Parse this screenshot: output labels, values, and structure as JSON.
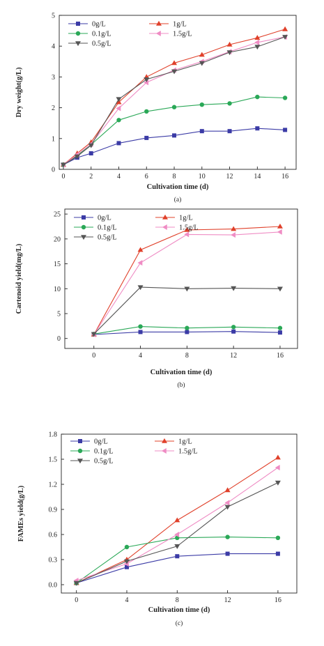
{
  "colors": {
    "0g/L": "#3b3ba6",
    "0.1g/L": "#2aa857",
    "0.5g/L": "#555555",
    "1g/L": "#e0402a",
    "1.5g/L": "#ef8cc4"
  },
  "chart_data": [
    {
      "type": "line",
      "panel_label": "(a)",
      "xlabel": "Cultivation time (d)",
      "ylabel": "Dry weight(g/L)",
      "xlim": [
        -0.3,
        16.8
      ],
      "ylim": [
        0,
        5
      ],
      "xticks": [
        0,
        2,
        4,
        6,
        8,
        10,
        12,
        14,
        16
      ],
      "yticks": [
        0,
        1,
        2,
        3,
        4,
        5
      ],
      "legend_position": "top-left",
      "series": [
        {
          "name": "0g/L",
          "marker": "square",
          "x": [
            0,
            1,
            2,
            4,
            6,
            8,
            10,
            12,
            14,
            16
          ],
          "y": [
            0.15,
            0.38,
            0.52,
            0.85,
            1.02,
            1.1,
            1.24,
            1.24,
            1.33,
            1.28
          ]
        },
        {
          "name": "1g/L",
          "marker": "triangle-up",
          "x": [
            0,
            1,
            2,
            4,
            6,
            8,
            10,
            12,
            14,
            16
          ],
          "y": [
            0.15,
            0.52,
            0.88,
            2.18,
            3.0,
            3.45,
            3.72,
            4.05,
            4.27,
            4.55
          ]
        },
        {
          "name": "0.1g/L",
          "marker": "circle",
          "x": [
            0,
            1,
            2,
            4,
            6,
            8,
            10,
            12,
            14,
            16
          ],
          "y": [
            0.15,
            0.45,
            0.8,
            1.6,
            1.88,
            2.02,
            2.1,
            2.14,
            2.35,
            2.32
          ]
        },
        {
          "name": "1.5g/L",
          "marker": "triangle-left",
          "x": [
            0,
            1,
            2,
            4,
            6,
            8,
            10,
            12,
            14,
            16
          ],
          "y": [
            0.15,
            0.48,
            0.82,
            1.98,
            2.82,
            3.22,
            3.5,
            3.82,
            4.12,
            4.3
          ]
        },
        {
          "name": "0.5g/L",
          "marker": "triangle-down",
          "x": [
            0,
            1,
            2,
            4,
            6,
            8,
            10,
            12,
            14,
            16
          ],
          "y": [
            0.15,
            0.42,
            0.78,
            2.28,
            2.92,
            3.18,
            3.45,
            3.8,
            3.98,
            4.3
          ]
        }
      ]
    },
    {
      "type": "line",
      "panel_label": "(b)",
      "xlabel": "Cultivation time (d)",
      "ylabel": "Cartenoid yield(mg/L)",
      "xlim": [
        -2.5,
        17.5
      ],
      "ylim": [
        -2,
        26
      ],
      "xticks": [
        0,
        4,
        8,
        12,
        16
      ],
      "yticks": [
        0,
        5,
        10,
        15,
        20,
        25
      ],
      "legend_position": "top-left",
      "series": [
        {
          "name": "0g/L",
          "marker": "square",
          "x": [
            0,
            4,
            8,
            12,
            16
          ],
          "y": [
            0.8,
            1.3,
            1.3,
            1.4,
            1.2
          ]
        },
        {
          "name": "1g/L",
          "marker": "triangle-up",
          "x": [
            0,
            4,
            8,
            12,
            16
          ],
          "y": [
            0.8,
            17.8,
            21.8,
            22.0,
            22.5
          ]
        },
        {
          "name": "0.1g/L",
          "marker": "circle",
          "x": [
            0,
            4,
            8,
            12,
            16
          ],
          "y": [
            0.9,
            2.4,
            2.1,
            2.3,
            2.1
          ]
        },
        {
          "name": "1.5g/L",
          "marker": "triangle-left",
          "x": [
            0,
            4,
            8,
            12,
            16
          ],
          "y": [
            0.8,
            15.2,
            20.9,
            20.8,
            21.4
          ]
        },
        {
          "name": "0.5g/L",
          "marker": "triangle-down",
          "x": [
            0,
            4,
            8,
            12,
            16
          ],
          "y": [
            0.9,
            10.3,
            10.0,
            10.1,
            10.0
          ]
        }
      ]
    },
    {
      "type": "line",
      "panel_label": "(c)",
      "xlabel": "Cultivation time (d)",
      "ylabel": "FAMEs yield(g/L)",
      "xlim": [
        -1.2,
        17.5
      ],
      "ylim": [
        -0.1,
        1.8
      ],
      "xticks": [
        0,
        4,
        8,
        12,
        16
      ],
      "yticks": [
        0.0,
        0.3,
        0.6,
        0.9,
        1.2,
        1.5,
        1.8
      ],
      "ytick_labels": [
        "0.0",
        "0.3",
        "0.6",
        "0.9",
        "1.2",
        "1.5",
        "1.8"
      ],
      "legend_position": "top-left",
      "series": [
        {
          "name": "0g/L",
          "marker": "square",
          "x": [
            0,
            4,
            8,
            12,
            16
          ],
          "y": [
            0.02,
            0.21,
            0.34,
            0.37,
            0.37
          ]
        },
        {
          "name": "1g/L",
          "marker": "triangle-up",
          "x": [
            0,
            4,
            8,
            12,
            16
          ],
          "y": [
            0.02,
            0.3,
            0.77,
            1.13,
            1.52
          ]
        },
        {
          "name": "0.1g/L",
          "marker": "circle",
          "x": [
            0,
            4,
            8,
            12,
            16
          ],
          "y": [
            0.02,
            0.45,
            0.56,
            0.57,
            0.56
          ]
        },
        {
          "name": "1.5g/L",
          "marker": "triangle-left",
          "x": [
            0,
            4,
            8,
            12,
            16
          ],
          "y": [
            0.05,
            0.25,
            0.6,
            0.98,
            1.4
          ]
        },
        {
          "name": "0.5g/L",
          "marker": "triangle-down",
          "x": [
            0,
            4,
            8,
            12,
            16
          ],
          "y": [
            0.02,
            0.28,
            0.46,
            0.93,
            1.22
          ]
        }
      ]
    }
  ]
}
